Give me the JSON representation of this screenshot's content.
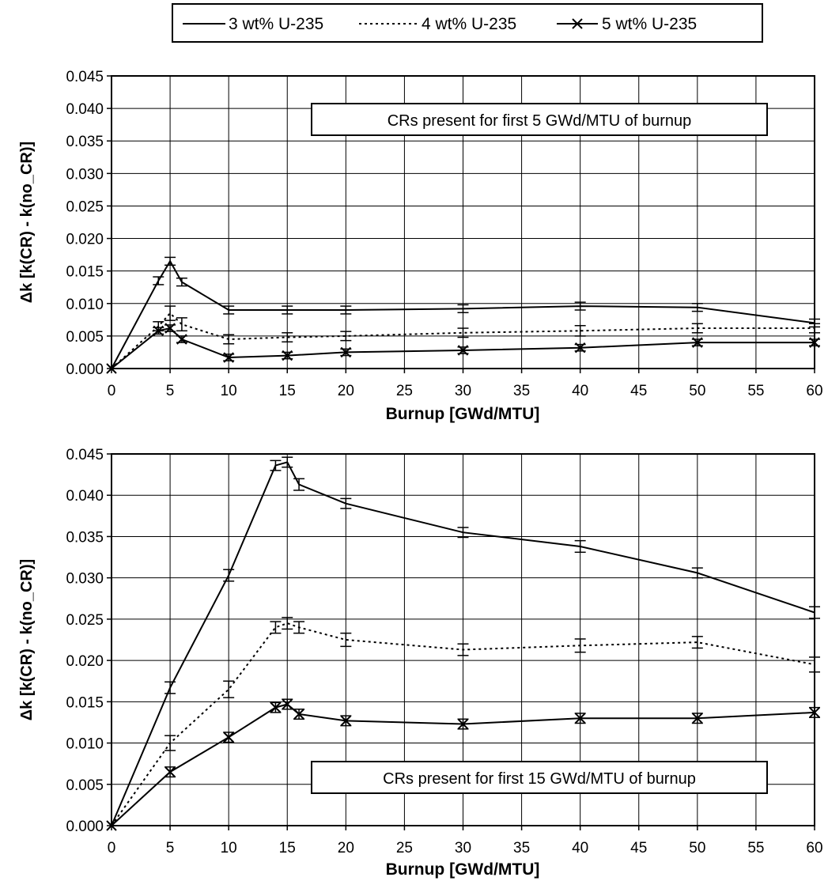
{
  "legend": [
    {
      "label": "3 wt% U-235",
      "style": "solid"
    },
    {
      "label": "4 wt% U-235",
      "style": "dotted"
    },
    {
      "label": "5 wt% U-235",
      "style": "solid-x"
    }
  ],
  "chart_data": [
    {
      "type": "line",
      "annotation": "CRs present for first 5 GWd/MTU of burnup",
      "xlabel": "Burnup [GWd/MTU]",
      "ylabel": "Δk [k(CR) - k(no_CR)]",
      "xlim": [
        0,
        60
      ],
      "ylim": [
        0,
        0.045
      ],
      "xticks": [
        "0",
        "5",
        "10",
        "15",
        "20",
        "25",
        "30",
        "35",
        "40",
        "45",
        "50",
        "55",
        "60"
      ],
      "yticks": [
        "0.000",
        "0.005",
        "0.010",
        "0.015",
        "0.020",
        "0.025",
        "0.030",
        "0.035",
        "0.040",
        "0.045"
      ],
      "grid": true,
      "series": [
        {
          "name": "3 wt% U-235",
          "x": [
            0,
            4,
            5,
            6,
            10,
            15,
            20,
            30,
            40,
            50,
            60
          ],
          "y": [
            0.0,
            0.0135,
            0.0165,
            0.0133,
            0.009,
            0.009,
            0.009,
            0.0092,
            0.0096,
            0.0094,
            0.007
          ],
          "err": [
            0,
            0.0006,
            0.0006,
            0.0006,
            0.0006,
            0.0006,
            0.0006,
            0.0006,
            0.0006,
            0.0006,
            0.0006
          ]
        },
        {
          "name": "4 wt% U-235",
          "x": [
            0,
            4,
            5,
            6,
            10,
            15,
            20,
            30,
            40,
            50,
            60
          ],
          "y": [
            0.0,
            0.0065,
            0.0085,
            0.0068,
            0.0045,
            0.0048,
            0.005,
            0.0055,
            0.0058,
            0.0062,
            0.0062
          ],
          "err": [
            0,
            0.0007,
            0.0011,
            0.001,
            0.0007,
            0.0007,
            0.0007,
            0.0007,
            0.0008,
            0.0007,
            0.0007
          ]
        },
        {
          "name": "5 wt% U-235",
          "x": [
            0,
            4,
            5,
            6,
            10,
            15,
            20,
            30,
            40,
            50,
            60
          ],
          "y": [
            0.0,
            0.0058,
            0.0062,
            0.0045,
            0.0017,
            0.002,
            0.0025,
            0.0028,
            0.0032,
            0.004,
            0.004
          ],
          "err": [
            0,
            0.0005,
            0.0005,
            0.0005,
            0.0005,
            0.0005,
            0.0005,
            0.0005,
            0.0005,
            0.0005,
            0.0005
          ]
        }
      ]
    },
    {
      "type": "line",
      "annotation": "CRs present for first 15 GWd/MTU of burnup",
      "xlabel": "Burnup [GWd/MTU]",
      "ylabel": "Δk [k(CR) - k(no_CR)]",
      "xlim": [
        0,
        60
      ],
      "ylim": [
        0,
        0.045
      ],
      "xticks": [
        "0",
        "5",
        "10",
        "15",
        "20",
        "25",
        "30",
        "35",
        "40",
        "45",
        "50",
        "55",
        "60"
      ],
      "yticks": [
        "0.000",
        "0.005",
        "0.010",
        "0.015",
        "0.020",
        "0.025",
        "0.030",
        "0.035",
        "0.040",
        "0.045"
      ],
      "grid": true,
      "series": [
        {
          "name": "3 wt% U-235",
          "x": [
            0,
            5,
            10,
            14,
            15,
            16,
            20,
            30,
            40,
            50,
            60
          ],
          "y": [
            0.0,
            0.0167,
            0.0303,
            0.0436,
            0.044,
            0.0413,
            0.039,
            0.0355,
            0.0338,
            0.0306,
            0.0258
          ],
          "err": [
            0,
            0.0007,
            0.0007,
            0.0006,
            0.0006,
            0.0007,
            0.0006,
            0.0006,
            0.0007,
            0.0006,
            0.0007
          ]
        },
        {
          "name": "4 wt% U-235",
          "x": [
            0,
            5,
            10,
            14,
            15,
            16,
            20,
            30,
            40,
            50,
            60
          ],
          "y": [
            0.0,
            0.01,
            0.0165,
            0.024,
            0.0245,
            0.024,
            0.0225,
            0.0213,
            0.0218,
            0.0222,
            0.0195
          ],
          "err": [
            0,
            0.0009,
            0.001,
            0.0007,
            0.0007,
            0.0007,
            0.0008,
            0.0007,
            0.0008,
            0.0007,
            0.0009
          ]
        },
        {
          "name": "5 wt% U-235",
          "x": [
            0,
            5,
            10,
            14,
            15,
            16,
            20,
            30,
            40,
            50,
            60
          ],
          "y": [
            0.0,
            0.0065,
            0.0107,
            0.0143,
            0.0147,
            0.0135,
            0.0127,
            0.0123,
            0.013,
            0.013,
            0.0137
          ],
          "err": [
            0,
            0.0006,
            0.0006,
            0.0006,
            0.0006,
            0.0006,
            0.0006,
            0.0006,
            0.0006,
            0.0006,
            0.0006
          ]
        }
      ]
    }
  ]
}
